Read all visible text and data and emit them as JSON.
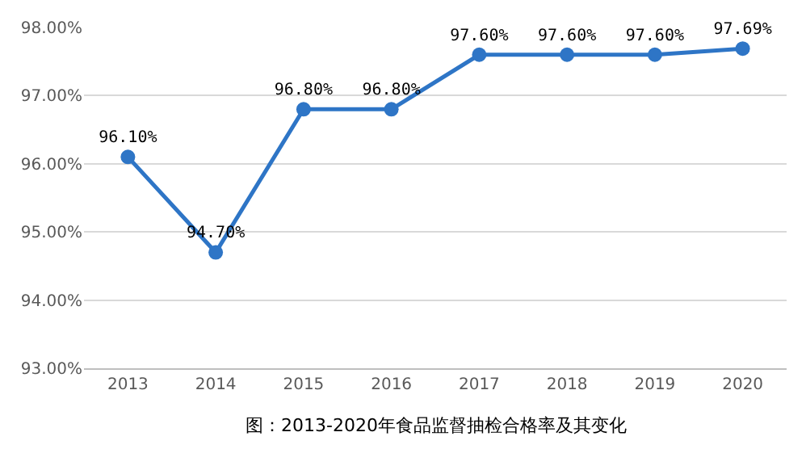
{
  "chart_data": {
    "type": "line",
    "categories": [
      "2013",
      "2014",
      "2015",
      "2016",
      "2017",
      "2018",
      "2019",
      "2020"
    ],
    "series": [
      {
        "color": "#2e75c6",
        "values": [
          96.1,
          94.7,
          96.8,
          96.8,
          97.6,
          97.6,
          97.6,
          97.69
        ],
        "value_labels": [
          "96.10%",
          "94.70%",
          "96.80%",
          "96.80%",
          "97.60%",
          "97.60%",
          "97.60%",
          "97.69%"
        ]
      }
    ],
    "ylim": [
      93,
      98
    ],
    "yticks": [
      {
        "value": 93,
        "label": "93.00%"
      },
      {
        "value": 94,
        "label": "94.00%"
      },
      {
        "value": 95,
        "label": "95.00%"
      },
      {
        "value": 96,
        "label": "96.00%"
      },
      {
        "value": 97,
        "label": "97.00%"
      },
      {
        "value": 98,
        "label": "98.00%"
      }
    ],
    "grid": "y",
    "marker": "circle",
    "line_style": "solid",
    "annotations": [
      "图：2013-2020年食品监督抽检合格率及其变化"
    ]
  }
}
